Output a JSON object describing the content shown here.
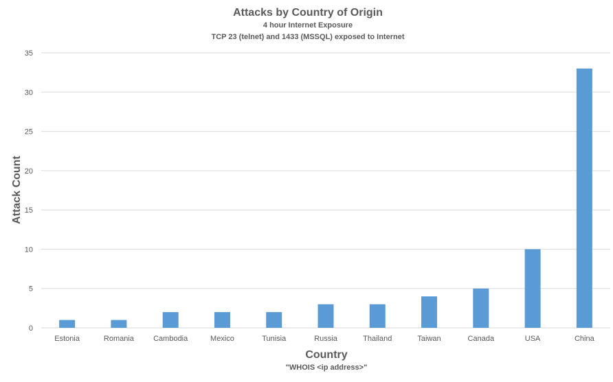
{
  "chart_data": {
    "type": "bar",
    "title": "Attacks by Country of Origin",
    "subtitle_1": "4 hour Internet Exposure",
    "subtitle_2": "TCP 23 (telnet) and 1433 (MSSQL) exposed to Internet",
    "xlabel": "Country",
    "xlabel_sub": "\"WHOIS <ip address>\"",
    "ylabel": "Attack Count",
    "categories": [
      "Estonia",
      "Romania",
      "Cambodia",
      "Mexico",
      "Tunisia",
      "Russia",
      "Thailand",
      "Taiwan",
      "Canada",
      "USA",
      "China"
    ],
    "values": [
      1,
      1,
      2,
      2,
      2,
      3,
      3,
      4,
      5,
      10,
      33
    ],
    "ylim": [
      0,
      35
    ],
    "yticks": [
      0,
      5,
      10,
      15,
      20,
      25,
      30,
      35
    ],
    "grid": true,
    "legend": "none",
    "bar_color": "#5b9bd5",
    "grid_color": "#d9d9d9",
    "text_color": "#595959"
  }
}
